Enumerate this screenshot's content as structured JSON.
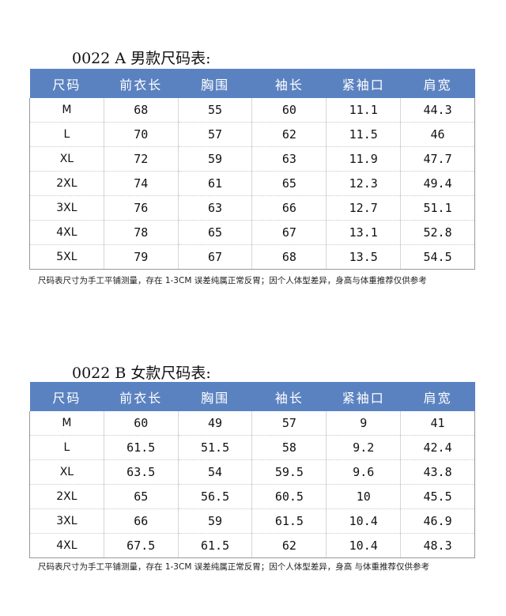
{
  "table_a": {
    "title": "0022 A 男款尺码表:",
    "headers": [
      "尺码",
      "前衣长",
      "胸围",
      "袖长",
      "紧袖口",
      "肩宽"
    ],
    "rows": [
      [
        "M",
        "68",
        "55",
        "60",
        "11.1",
        "44.3"
      ],
      [
        "L",
        "70",
        "57",
        "62",
        "11.5",
        "46"
      ],
      [
        "XL",
        "72",
        "59",
        "63",
        "11.9",
        "47.7"
      ],
      [
        "2XL",
        "74",
        "61",
        "65",
        "12.3",
        "49.4"
      ],
      [
        "3XL",
        "76",
        "63",
        "66",
        "12.7",
        "51.1"
      ],
      [
        "4XL",
        "78",
        "65",
        "67",
        "13.1",
        "52.8"
      ],
      [
        "5XL",
        "79",
        "67",
        "68",
        "13.5",
        "54.5"
      ]
    ],
    "note": "尺码表尺寸为手工平铺测量，存在 1-3CM 误差纯属正常反胃；因个人体型差异，身高与体重推荐仅供参考"
  },
  "table_b": {
    "title": "0022 B 女款尺码表:",
    "headers": [
      "尺码",
      "前衣长",
      "胸围",
      "袖长",
      "紧袖口",
      "肩宽"
    ],
    "rows": [
      [
        "M",
        "60",
        "49",
        "57",
        "9",
        "41"
      ],
      [
        "L",
        "61.5",
        "51.5",
        "58",
        "9.2",
        "42.4"
      ],
      [
        "XL",
        "63.5",
        "54",
        "59.5",
        "9.6",
        "43.8"
      ],
      [
        "2XL",
        "65",
        "56.5",
        "60.5",
        "10",
        "45.5"
      ],
      [
        "3XL",
        "66",
        "59",
        "61.5",
        "10.4",
        "46.9"
      ],
      [
        "4XL",
        "67.5",
        "61.5",
        "62",
        "10.4",
        "48.3"
      ]
    ],
    "note": "尺码表尺寸为手工平铺测量，存在 1-3CM 误差纯属正常反胃；因个人体型差异，身高 与体重推荐仅供参考"
  },
  "colors": {
    "header_bg": "#5b82c0",
    "header_text": "#ffffff"
  }
}
